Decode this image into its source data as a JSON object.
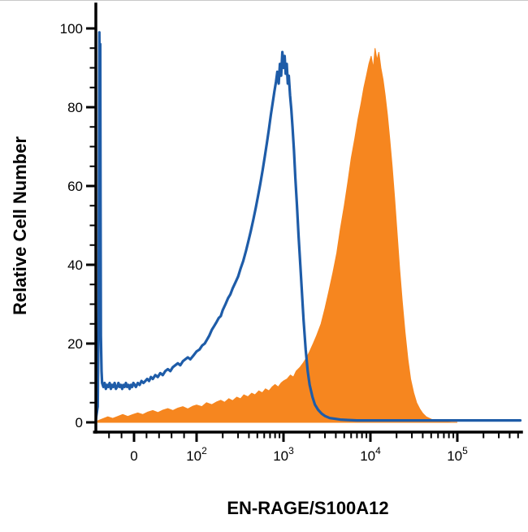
{
  "chart_data": {
    "type": "area",
    "subtype": "flow_cytometry_histogram_overlay",
    "xlabel": "EN-RAGE/S100A12",
    "ylabel": "Relative Cell Number",
    "x_scale": "biexponential-log",
    "xlim": [
      -61,
      530000
    ],
    "ylim": [
      0,
      100
    ],
    "grid": false,
    "legend": "none",
    "axis_color": "#000000",
    "background": "#ffffff",
    "x_ticks": [
      {
        "value": 0,
        "label": "0"
      },
      {
        "value": 100,
        "base": "10",
        "exp": "2"
      },
      {
        "value": 1000,
        "base": "10",
        "exp": "3"
      },
      {
        "value": 10000,
        "base": "10",
        "exp": "4"
      },
      {
        "value": 100000,
        "base": "10",
        "exp": "5"
      }
    ],
    "y_ticks": [
      0,
      20,
      40,
      60,
      80,
      100
    ],
    "series": [
      {
        "name": "filled-orange",
        "style": "filled",
        "color": "#F6861F",
        "points": [
          [
            -58,
            0.4
          ],
          [
            -50,
            0.9
          ],
          [
            -42,
            1.4
          ],
          [
            -34,
            1
          ],
          [
            -26,
            1.5
          ],
          [
            -18,
            2
          ],
          [
            -10,
            1.5
          ],
          [
            -2,
            2
          ],
          [
            6,
            2.4
          ],
          [
            14,
            2
          ],
          [
            22,
            2.6
          ],
          [
            30,
            3
          ],
          [
            38,
            2.5
          ],
          [
            46,
            3.1
          ],
          [
            54,
            3.5
          ],
          [
            62,
            3
          ],
          [
            70,
            3.6
          ],
          [
            78,
            4
          ],
          [
            86,
            3.4
          ],
          [
            94,
            4.1
          ],
          [
            100,
            4.4
          ],
          [
            115,
            4
          ],
          [
            130,
            5
          ],
          [
            150,
            4.5
          ],
          [
            170,
            5.2
          ],
          [
            190,
            5.6
          ],
          [
            210,
            5.1
          ],
          [
            235,
            6
          ],
          [
            260,
            5.5
          ],
          [
            290,
            6.4
          ],
          [
            320,
            6
          ],
          [
            350,
            7
          ],
          [
            390,
            6.5
          ],
          [
            430,
            7.4
          ],
          [
            470,
            7
          ],
          [
            520,
            8
          ],
          [
            570,
            7.5
          ],
          [
            620,
            8.5
          ],
          [
            680,
            8
          ],
          [
            740,
            9
          ],
          [
            800,
            9.6
          ],
          [
            870,
            9
          ],
          [
            940,
            10
          ],
          [
            1000,
            10.5
          ],
          [
            1100,
            11
          ],
          [
            1200,
            12
          ],
          [
            1300,
            11.5
          ],
          [
            1400,
            13
          ],
          [
            1550,
            14
          ],
          [
            1700,
            15.2
          ],
          [
            1850,
            16.5
          ],
          [
            2000,
            18
          ],
          [
            2200,
            20
          ],
          [
            2400,
            22
          ],
          [
            2700,
            25
          ],
          [
            3000,
            29
          ],
          [
            3300,
            33
          ],
          [
            3700,
            38
          ],
          [
            4100,
            43
          ],
          [
            4500,
            49
          ],
          [
            5000,
            55
          ],
          [
            5500,
            61
          ],
          [
            6000,
            67
          ],
          [
            6600,
            72
          ],
          [
            7200,
            77
          ],
          [
            7800,
            81
          ],
          [
            8400,
            85
          ],
          [
            9000,
            88
          ],
          [
            9600,
            91
          ],
          [
            10200,
            93
          ],
          [
            10800,
            90
          ],
          [
            11300,
            95
          ],
          [
            11900,
            92
          ],
          [
            12500,
            94
          ],
          [
            13200,
            90
          ],
          [
            14000,
            87
          ],
          [
            14800,
            83
          ],
          [
            15700,
            78
          ],
          [
            16700,
            72
          ],
          [
            17800,
            65
          ],
          [
            19000,
            57
          ],
          [
            20300,
            48
          ],
          [
            21700,
            39
          ],
          [
            23200,
            31
          ],
          [
            25000,
            23
          ],
          [
            27000,
            16
          ],
          [
            29000,
            11
          ],
          [
            31500,
            7.5
          ],
          [
            34000,
            5
          ],
          [
            37000,
            3.4
          ],
          [
            40000,
            2.3
          ],
          [
            44000,
            1.4
          ],
          [
            50000,
            0.8
          ],
          [
            60000,
            0.35
          ],
          [
            70000,
            0.15
          ],
          [
            85000,
            0.05
          ],
          [
            100000,
            0
          ]
        ]
      },
      {
        "name": "open-blue",
        "style": "open",
        "color": "#1E5CA8",
        "line_width": 3.2,
        "points": [
          [
            -61,
            0.8
          ],
          [
            -58,
            4
          ],
          [
            -56.5,
            30
          ],
          [
            -55.5,
            99
          ],
          [
            -55,
            88
          ],
          [
            -54,
            96
          ],
          [
            -53.5,
            55
          ],
          [
            -53,
            22
          ],
          [
            -52,
            13
          ],
          [
            -51,
            10
          ],
          [
            -49,
            9
          ],
          [
            -47,
            10
          ],
          [
            -45,
            8.5
          ],
          [
            -43,
            9.5
          ],
          [
            -41,
            9
          ],
          [
            -39,
            10
          ],
          [
            -37,
            8.5
          ],
          [
            -35,
            9.5
          ],
          [
            -33,
            9
          ],
          [
            -31,
            10
          ],
          [
            -29,
            8.5
          ],
          [
            -27,
            9
          ],
          [
            -25,
            10
          ],
          [
            -23,
            9
          ],
          [
            -21,
            9.5
          ],
          [
            -19,
            8.5
          ],
          [
            -17,
            9.5
          ],
          [
            -15,
            9
          ],
          [
            -13,
            10
          ],
          [
            -11,
            9
          ],
          [
            -9,
            9.5
          ],
          [
            -7,
            8.5
          ],
          [
            -5,
            9.5
          ],
          [
            -3,
            9
          ],
          [
            -1,
            10
          ],
          [
            1,
            9.5
          ],
          [
            3,
            9
          ],
          [
            6,
            10
          ],
          [
            9,
            9.5
          ],
          [
            12,
            10.5
          ],
          [
            15,
            10
          ],
          [
            18,
            10.5
          ],
          [
            21,
            11
          ],
          [
            24,
            10.5
          ],
          [
            27,
            11.5
          ],
          [
            30,
            11
          ],
          [
            34,
            12
          ],
          [
            38,
            11.5
          ],
          [
            42,
            12.5
          ],
          [
            46,
            12
          ],
          [
            50,
            13
          ],
          [
            54,
            13.5
          ],
          [
            58,
            13
          ],
          [
            62,
            14
          ],
          [
            66,
            14.5
          ],
          [
            70,
            15
          ],
          [
            74,
            14.5
          ],
          [
            78,
            15.5
          ],
          [
            82,
            16
          ],
          [
            86,
            16.5
          ],
          [
            90,
            16
          ],
          [
            95,
            17
          ],
          [
            100,
            18
          ],
          [
            108,
            18.5
          ],
          [
            116,
            19.5
          ],
          [
            124,
            20
          ],
          [
            132,
            21
          ],
          [
            140,
            22
          ],
          [
            150,
            23.5
          ],
          [
            160,
            24.5
          ],
          [
            170,
            25.5
          ],
          [
            180,
            26.5
          ],
          [
            190,
            27
          ],
          [
            200,
            28.5
          ],
          [
            215,
            30
          ],
          [
            230,
            31.5
          ],
          [
            245,
            32.5
          ],
          [
            260,
            34
          ],
          [
            280,
            35.5
          ],
          [
            300,
            37
          ],
          [
            320,
            39
          ],
          [
            345,
            41
          ],
          [
            370,
            43.5
          ],
          [
            395,
            46
          ],
          [
            420,
            48.5
          ],
          [
            450,
            51.5
          ],
          [
            480,
            54.5
          ],
          [
            510,
            57.5
          ],
          [
            540,
            60.5
          ],
          [
            575,
            64
          ],
          [
            610,
            67.5
          ],
          [
            645,
            71
          ],
          [
            680,
            74.5
          ],
          [
            715,
            78
          ],
          [
            750,
            81
          ],
          [
            785,
            84
          ],
          [
            820,
            86.5
          ],
          [
            850,
            89
          ],
          [
            880,
            86
          ],
          [
            910,
            91
          ],
          [
            940,
            88
          ],
          [
            970,
            94
          ],
          [
            1000,
            90
          ],
          [
            1030,
            93
          ],
          [
            1060,
            88.5
          ],
          [
            1090,
            91
          ],
          [
            1120,
            86
          ],
          [
            1150,
            88
          ],
          [
            1190,
            83
          ],
          [
            1230,
            79.5
          ],
          [
            1270,
            75
          ],
          [
            1320,
            69
          ],
          [
            1370,
            62
          ],
          [
            1430,
            55
          ],
          [
            1490,
            47.5
          ],
          [
            1560,
            40
          ],
          [
            1630,
            33
          ],
          [
            1700,
            26
          ],
          [
            1800,
            18.5
          ],
          [
            1900,
            13
          ],
          [
            2000,
            9.5
          ],
          [
            2150,
            6.5
          ],
          [
            2300,
            4.5
          ],
          [
            2500,
            3.2
          ],
          [
            2750,
            2.2
          ],
          [
            3000,
            1.6
          ],
          [
            3400,
            1.1
          ],
          [
            3900,
            0.9
          ],
          [
            4500,
            0.7
          ],
          [
            5500,
            0.6
          ],
          [
            7000,
            0.5
          ],
          [
            10000,
            0.5
          ],
          [
            15000,
            0.5
          ],
          [
            25000,
            0.5
          ],
          [
            50000,
            0.5
          ],
          [
            100000,
            0.5
          ],
          [
            200000,
            0.5
          ],
          [
            350000,
            0.5
          ],
          [
            530000,
            0.5
          ]
        ]
      }
    ]
  }
}
